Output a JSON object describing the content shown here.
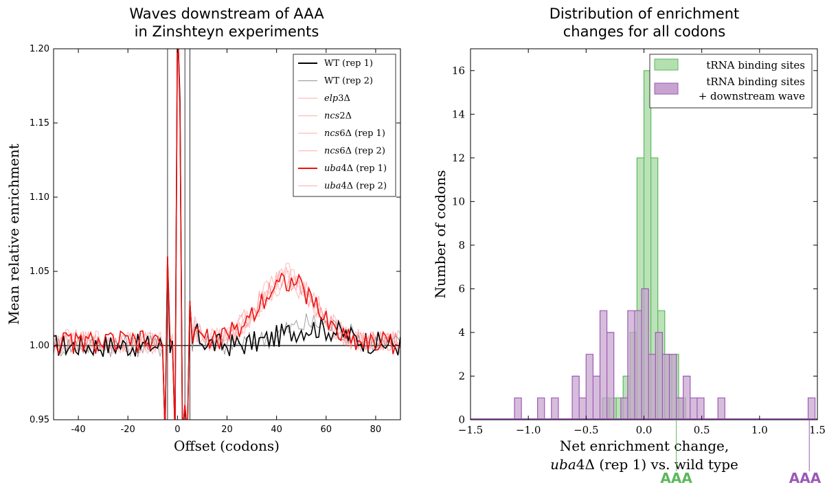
{
  "chart_data": [
    {
      "type": "line",
      "title_line1": "Waves downstream of AAA",
      "title_line2": "in Zinshteyn experiments",
      "xlabel": "Offset (codons)",
      "ylabel": "Mean relative enrichment",
      "xlim": [
        -50,
        90
      ],
      "ylim": [
        0.95,
        1.2
      ],
      "xticks": [
        "-40",
        "-20",
        "0",
        "20",
        "40",
        "60",
        "80"
      ],
      "yticks": [
        "0.95",
        "1.00",
        "1.05",
        "1.10",
        "1.15",
        "1.20"
      ],
      "reference_line_y": 1.0,
      "vertical_lines_x": [
        -4,
        3,
        5
      ],
      "grid": false,
      "legend_position": "top-right",
      "series": [
        {
          "name": "WT (rep 1)",
          "color": "#000000",
          "alpha": 1.0,
          "baseline": 1.0,
          "wave": 0.012,
          "center": 55,
          "width": 18
        },
        {
          "name": "WT (rep 2)",
          "color": "#777777",
          "alpha": 0.7,
          "baseline": 1.0,
          "wave": 0.015,
          "center": 55,
          "width": 18
        },
        {
          "name": "elp3Δ",
          "color": "#ff8080",
          "alpha": 0.55,
          "baseline": 1.002,
          "wave": 0.042,
          "center": 44,
          "width": 16
        },
        {
          "name": "ncs2Δ",
          "color": "#ff8080",
          "alpha": 0.55,
          "baseline": 1.002,
          "wave": 0.044,
          "center": 44,
          "width": 16
        },
        {
          "name": "ncs6Δ (rep 1)",
          "color": "#ff8080",
          "alpha": 0.55,
          "baseline": 1.003,
          "wave": 0.045,
          "center": 44,
          "width": 16
        },
        {
          "name": "ncs6Δ (rep 2)",
          "color": "#ff8080",
          "alpha": 0.55,
          "baseline": 1.002,
          "wave": 0.043,
          "center": 44,
          "width": 16
        },
        {
          "name": "uba4Δ (rep 1)",
          "color": "#ee1010",
          "alpha": 1.0,
          "baseline": 1.002,
          "wave": 0.042,
          "center": 44,
          "width": 16
        },
        {
          "name": "uba4Δ (rep 2)",
          "color": "#ff8080",
          "alpha": 0.55,
          "baseline": 1.002,
          "wave": 0.04,
          "center": 44,
          "width": 16
        }
      ],
      "legend_entries": [
        {
          "prefix": "WT (rep 1)",
          "italic": "",
          "suffix": ""
        },
        {
          "prefix": "WT (rep 2)",
          "italic": "",
          "suffix": ""
        },
        {
          "prefix": "",
          "italic": "elp",
          "suffix": "3Δ"
        },
        {
          "prefix": "",
          "italic": "ncs",
          "suffix": "2Δ"
        },
        {
          "prefix": "",
          "italic": "ncs",
          "suffix": "6Δ (rep 1)"
        },
        {
          "prefix": "",
          "italic": "ncs",
          "suffix": "6Δ (rep 2)"
        },
        {
          "prefix": "",
          "italic": "uba",
          "suffix": "4Δ (rep 1)"
        },
        {
          "prefix": "",
          "italic": "uba",
          "suffix": "4Δ (rep 2)"
        }
      ]
    },
    {
      "type": "histogram",
      "title_line1": "Distribution of enrichment",
      "title_line2": "changes for all codons",
      "xlabel_line1": "Net enrichment change,",
      "xlabel_line2_italic": "uba",
      "xlabel_line2_rest": "4Δ (rep 1) vs. wild type",
      "ylabel": "Number of codons",
      "xlim": [
        -1.5,
        1.5
      ],
      "ylim": [
        0,
        17
      ],
      "xticks": [
        "−1.5",
        "−1.0",
        "−0.5",
        "0.0",
        "0.5",
        "1.0",
        "1.5"
      ],
      "yticks": [
        "0",
        "2",
        "4",
        "6",
        "8",
        "10",
        "12",
        "14",
        "16"
      ],
      "bin_width": 0.06,
      "legend_position": "top-right",
      "series": [
        {
          "name": "tRNA binding sites",
          "fill": "#b4dfb0",
          "edge": "#5cb85c",
          "bins": [
            {
              "x0": -0.36,
              "count": 1
            },
            {
              "x0": -0.3,
              "count": 1
            },
            {
              "x0": -0.24,
              "count": 1
            },
            {
              "x0": -0.18,
              "count": 2
            },
            {
              "x0": -0.12,
              "count": 4
            },
            {
              "x0": -0.06,
              "count": 12
            },
            {
              "x0": 0.0,
              "count": 16
            },
            {
              "x0": 0.06,
              "count": 12
            },
            {
              "x0": 0.12,
              "count": 5
            },
            {
              "x0": 0.18,
              "count": 3
            },
            {
              "x0": 0.24,
              "count": 3
            },
            {
              "x0": 0.3,
              "count": 1
            }
          ]
        },
        {
          "name_line1": "tRNA binding sites",
          "name_line2": "+ downstream wave",
          "fill": "#c7a3cf",
          "edge": "#9b59b6",
          "bins": [
            {
              "x0": -1.12,
              "count": 1
            },
            {
              "x0": -0.92,
              "count": 1
            },
            {
              "x0": -0.8,
              "count": 1
            },
            {
              "x0": -0.62,
              "count": 2
            },
            {
              "x0": -0.56,
              "count": 1
            },
            {
              "x0": -0.5,
              "count": 3
            },
            {
              "x0": -0.44,
              "count": 2
            },
            {
              "x0": -0.38,
              "count": 5
            },
            {
              "x0": -0.32,
              "count": 4
            },
            {
              "x0": -0.2,
              "count": 1
            },
            {
              "x0": -0.14,
              "count": 5
            },
            {
              "x0": -0.08,
              "count": 5
            },
            {
              "x0": -0.02,
              "count": 6
            },
            {
              "x0": 0.04,
              "count": 3
            },
            {
              "x0": 0.1,
              "count": 4
            },
            {
              "x0": 0.16,
              "count": 3
            },
            {
              "x0": 0.22,
              "count": 3
            },
            {
              "x0": 0.28,
              "count": 1
            },
            {
              "x0": 0.34,
              "count": 2
            },
            {
              "x0": 0.4,
              "count": 1
            },
            {
              "x0": 0.46,
              "count": 1
            },
            {
              "x0": 0.64,
              "count": 1
            },
            {
              "x0": 1.42,
              "count": 1
            }
          ]
        }
      ],
      "markers": [
        {
          "label": "AAA",
          "x": 0.28,
          "color": "#5cb85c"
        },
        {
          "label": "AAA",
          "x": 1.43,
          "color": "#9b59b6"
        }
      ]
    }
  ]
}
